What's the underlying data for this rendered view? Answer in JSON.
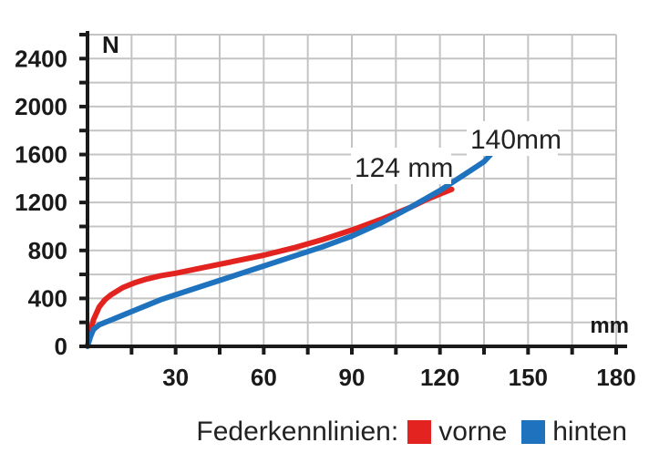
{
  "chart_data": {
    "type": "line",
    "y_unit": "N",
    "x_unit": "mm",
    "xlim": [
      0,
      180
    ],
    "ylim": [
      0,
      2600
    ],
    "x_ticks": [
      30,
      60,
      90,
      120,
      150,
      180
    ],
    "y_ticks": [
      0,
      400,
      800,
      1200,
      1600,
      2000,
      2400
    ],
    "grid": true,
    "legend_title": "Federkennlinien:",
    "legend_position": "bottom-right",
    "series": [
      {
        "name": "vorne",
        "color": "#e3231f",
        "x": [
          0,
          1,
          2,
          4,
          6,
          8,
          12,
          16,
          20,
          25,
          30,
          40,
          50,
          60,
          70,
          80,
          90,
          100,
          110,
          115,
          120,
          124
        ],
        "y": [
          0,
          120,
          220,
          330,
          390,
          430,
          490,
          530,
          560,
          590,
          610,
          660,
          710,
          760,
          820,
          890,
          970,
          1060,
          1160,
          1220,
          1270,
          1310
        ]
      },
      {
        "name": "hinten",
        "color": "#1f73be",
        "x": [
          0,
          1,
          2,
          4,
          6,
          8,
          12,
          16,
          20,
          25,
          30,
          40,
          50,
          60,
          70,
          80,
          90,
          100,
          110,
          120,
          125,
          130,
          135,
          138,
          140
        ],
        "y": [
          0,
          80,
          140,
          180,
          200,
          220,
          260,
          300,
          340,
          390,
          430,
          510,
          590,
          670,
          750,
          830,
          920,
          1030,
          1160,
          1300,
          1380,
          1460,
          1540,
          1620,
          1700
        ]
      }
    ],
    "annotations": [
      {
        "text": "124 mm",
        "x": 124,
        "y": 1310
      },
      {
        "text": "140mm",
        "x": 140,
        "y": 1700
      }
    ]
  }
}
